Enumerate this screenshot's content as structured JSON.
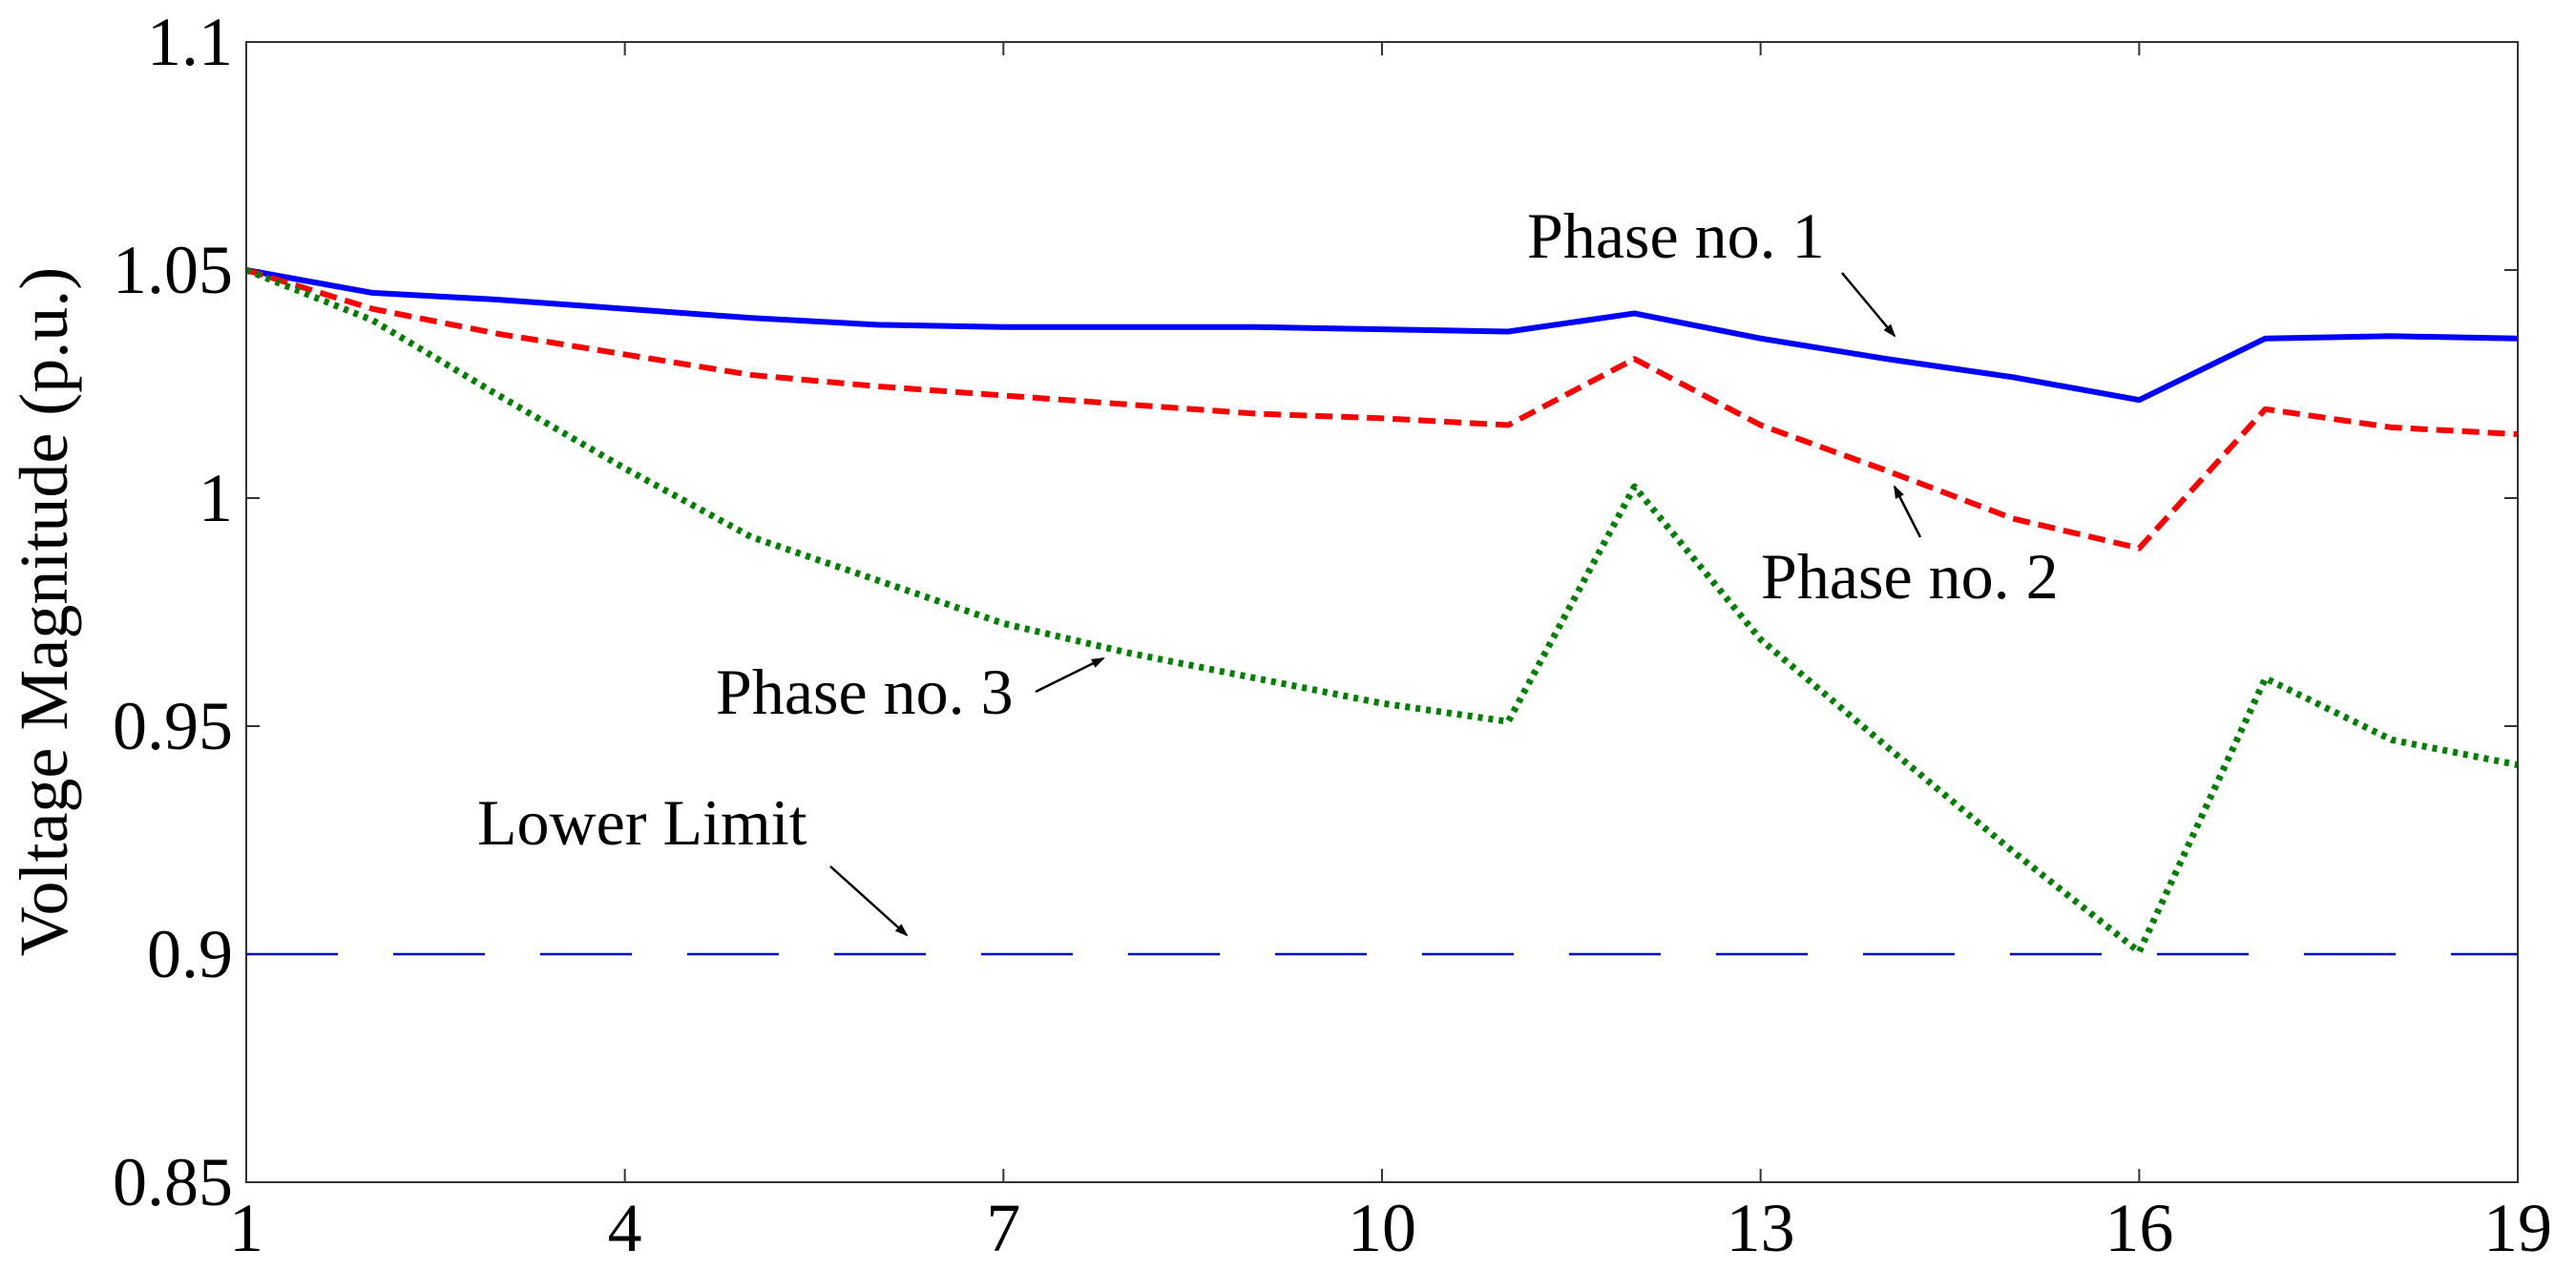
{
  "chart_data": {
    "type": "line",
    "title": "",
    "xlabel": "",
    "ylabel": "Voltage Magnitude (p.u.)",
    "xlim": [
      1,
      19
    ],
    "ylim": [
      0.85,
      1.1
    ],
    "grid": false,
    "x": [
      1,
      2,
      3,
      4,
      5,
      6,
      7,
      8,
      9,
      10,
      11,
      12,
      13,
      14,
      15,
      16,
      17,
      18,
      19
    ],
    "xticks": [
      1,
      4,
      7,
      10,
      13,
      16,
      19
    ],
    "xtick_labels": [
      "1",
      "4",
      "7",
      "10",
      "13",
      "16",
      "19"
    ],
    "yticks": [
      0.85,
      0.9,
      0.95,
      1.0,
      1.05,
      1.1
    ],
    "ytick_labels": [
      "0.85",
      "0.9",
      "0.95",
      "1",
      "1.05",
      "1.1"
    ],
    "series": [
      {
        "name": "Phase no. 1",
        "color": "#0000ff",
        "style": "solid",
        "values": [
          1.05,
          1.045,
          1.0435,
          1.0415,
          1.0395,
          1.038,
          1.0375,
          1.0375,
          1.0375,
          1.037,
          1.0365,
          1.0405,
          1.035,
          1.0305,
          1.0265,
          1.0215,
          1.035,
          1.0355,
          1.035
        ]
      },
      {
        "name": "Phase no. 2",
        "color": "#ff0000",
        "style": "dashed",
        "values": [
          1.05,
          1.0415,
          1.036,
          1.0315,
          1.027,
          1.0245,
          1.0225,
          1.0205,
          1.0185,
          1.0175,
          1.016,
          1.0305,
          1.016,
          1.006,
          0.9955,
          0.989,
          1.0195,
          1.0155,
          1.014
        ]
      },
      {
        "name": "Phase no. 3",
        "color": "#008000",
        "style": "dotted",
        "values": [
          1.05,
          1.039,
          1.0225,
          1.0065,
          0.9915,
          0.982,
          0.9725,
          0.966,
          0.9605,
          0.955,
          0.951,
          1.0025,
          0.969,
          0.9455,
          0.9225,
          0.9005,
          0.9605,
          0.947,
          0.9415
        ]
      },
      {
        "name": "Lower Limit",
        "color": "#0000cc",
        "style": "long-dash",
        "values": [
          0.9,
          0.9,
          0.9,
          0.9,
          0.9,
          0.9,
          0.9,
          0.9,
          0.9,
          0.9,
          0.9,
          0.9,
          0.9,
          0.9,
          0.9,
          0.9,
          0.9,
          0.9,
          0.9
        ]
      }
    ],
    "annotations": [
      {
        "text": "Phase no. 1",
        "points_to": "Phase no. 1",
        "near_x": 14
      },
      {
        "text": "Phase no. 2",
        "points_to": "Phase no. 2",
        "near_x": 14
      },
      {
        "text": "Phase no. 3",
        "points_to": "Phase no. 3",
        "near_x": 8
      },
      {
        "text": "Lower Limit",
        "points_to": "Lower Limit",
        "near_x": 6.5
      }
    ]
  }
}
